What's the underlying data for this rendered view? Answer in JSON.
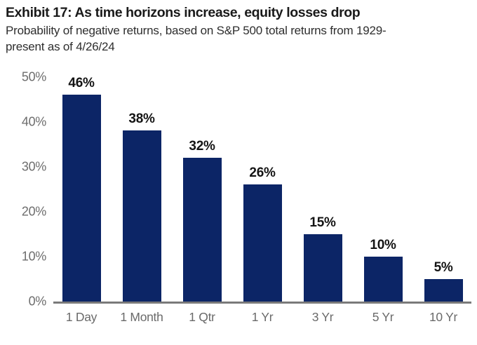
{
  "header": {
    "title": "Exhibit 17: As time horizons increase, equity losses drop",
    "subtitle": "Probability of negative returns, based on S&P 500 total returns from 1929-present as of 4/26/24"
  },
  "chart_data": {
    "type": "bar",
    "title": "Exhibit 17: As time horizons increase, equity losses drop",
    "subtitle": "Probability of negative returns, based on S&P 500 total returns from 1929-present as of 4/26/24",
    "categories": [
      "1 Day",
      "1 Month",
      "1 Qtr",
      "1 Yr",
      "3 Yr",
      "5 Yr",
      "10 Yr"
    ],
    "values": [
      46,
      38,
      32,
      26,
      15,
      10,
      5
    ],
    "value_labels": [
      "46%",
      "38%",
      "32%",
      "26%",
      "15%",
      "10%",
      "5%"
    ],
    "xlabel": "",
    "ylabel": "",
    "ylim": [
      0,
      50
    ],
    "ytick_values": [
      0,
      10,
      20,
      30,
      40,
      50
    ],
    "ytick_labels": [
      "0%",
      "10%",
      "20%",
      "30%",
      "40%",
      "50%"
    ],
    "grid": false,
    "legend_position": "none",
    "bar_color": "#0c2566",
    "value_label_color": "#141414",
    "tick_label_color": "#6e6e6e",
    "axis_line_color": "#7a7a7a"
  }
}
